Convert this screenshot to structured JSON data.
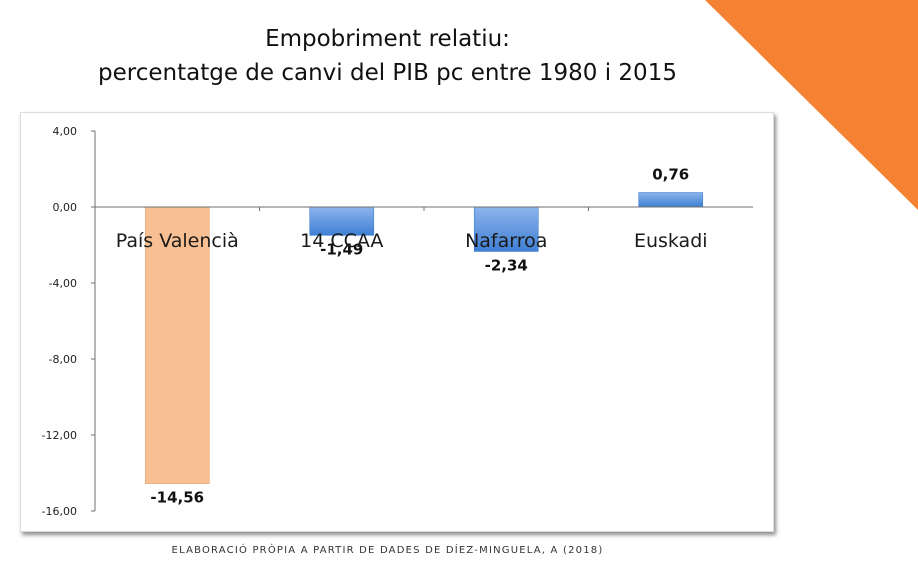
{
  "title": {
    "line1": "Empobriment relatiu:",
    "line2": "percentatge de canvi del PIB pc entre 1980 i 2015"
  },
  "source": "ELABORACIÓ PRÒPIA A PARTIR DE DADES DE DÍEZ-MINGUELA, A (2018)",
  "colors": {
    "accent_corner": "#f58232",
    "bar_highlight": "#f8c092",
    "bar_highlight_edge": "#e7a374",
    "bar_blue_top": "#8db4ec",
    "bar_blue_bottom": "#3e7fd4",
    "axis": "#6f6f6f"
  },
  "chart_data": {
    "type": "bar",
    "categories": [
      "País Valencià",
      "14 CCAA",
      "Nafarroa",
      "Euskadi"
    ],
    "values": [
      -14.56,
      -1.49,
      -2.34,
      0.76
    ],
    "data_labels": [
      "-14,56",
      "-1,49",
      "-2,34",
      "0,76"
    ],
    "highlight_index": 0,
    "title": "Empobriment relatiu: percentatge de canvi del PIB pc entre 1980 i 2015",
    "xlabel": "",
    "ylabel": "",
    "ylim": [
      -16,
      4
    ],
    "yticks": [
      4,
      0,
      -4,
      -8,
      -12,
      -16
    ],
    "ytick_labels": [
      "4,00",
      "0,00",
      "-4,00",
      "-8,00",
      "-12,00",
      "-16,00"
    ],
    "grid": false,
    "legend": "none"
  }
}
